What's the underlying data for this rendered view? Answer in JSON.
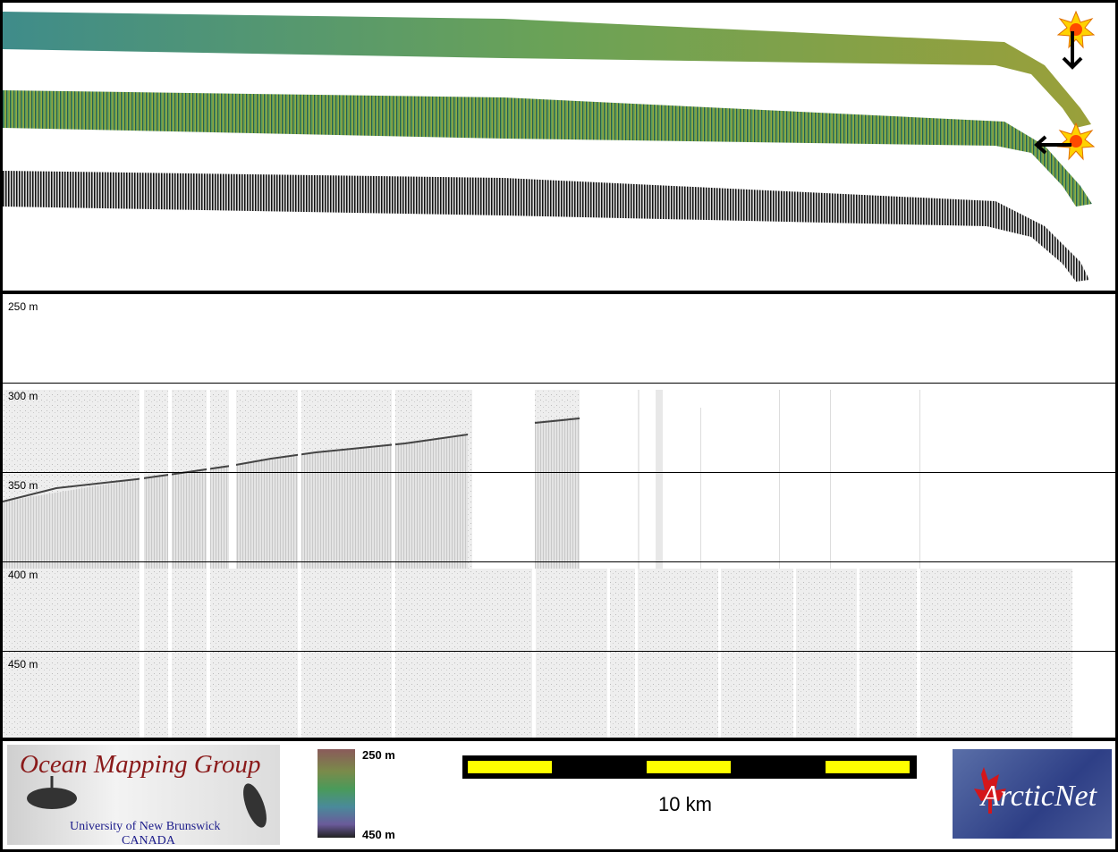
{
  "depth_axis": {
    "labels": [
      "250 m",
      "300 m",
      "350 m",
      "400 m",
      "450 m"
    ]
  },
  "logos": {
    "omg_title": "Ocean Mapping Group",
    "omg_university": "University of New Brunswick",
    "omg_country": "CANADA",
    "arcticnet": "ArcticNet"
  },
  "colorbar": {
    "top_label": "250 m",
    "bottom_label": "450 m"
  },
  "scale_bar": {
    "label": "10 km"
  },
  "icons": {
    "sun_markers": "sun-icon",
    "arrows": [
      "arrow-down-icon",
      "arrow-left-icon"
    ]
  },
  "colors": {
    "scale_yellow": "#ffff00",
    "swath_green": "#6fa85a",
    "swath_teal": "#3c8a8a"
  }
}
